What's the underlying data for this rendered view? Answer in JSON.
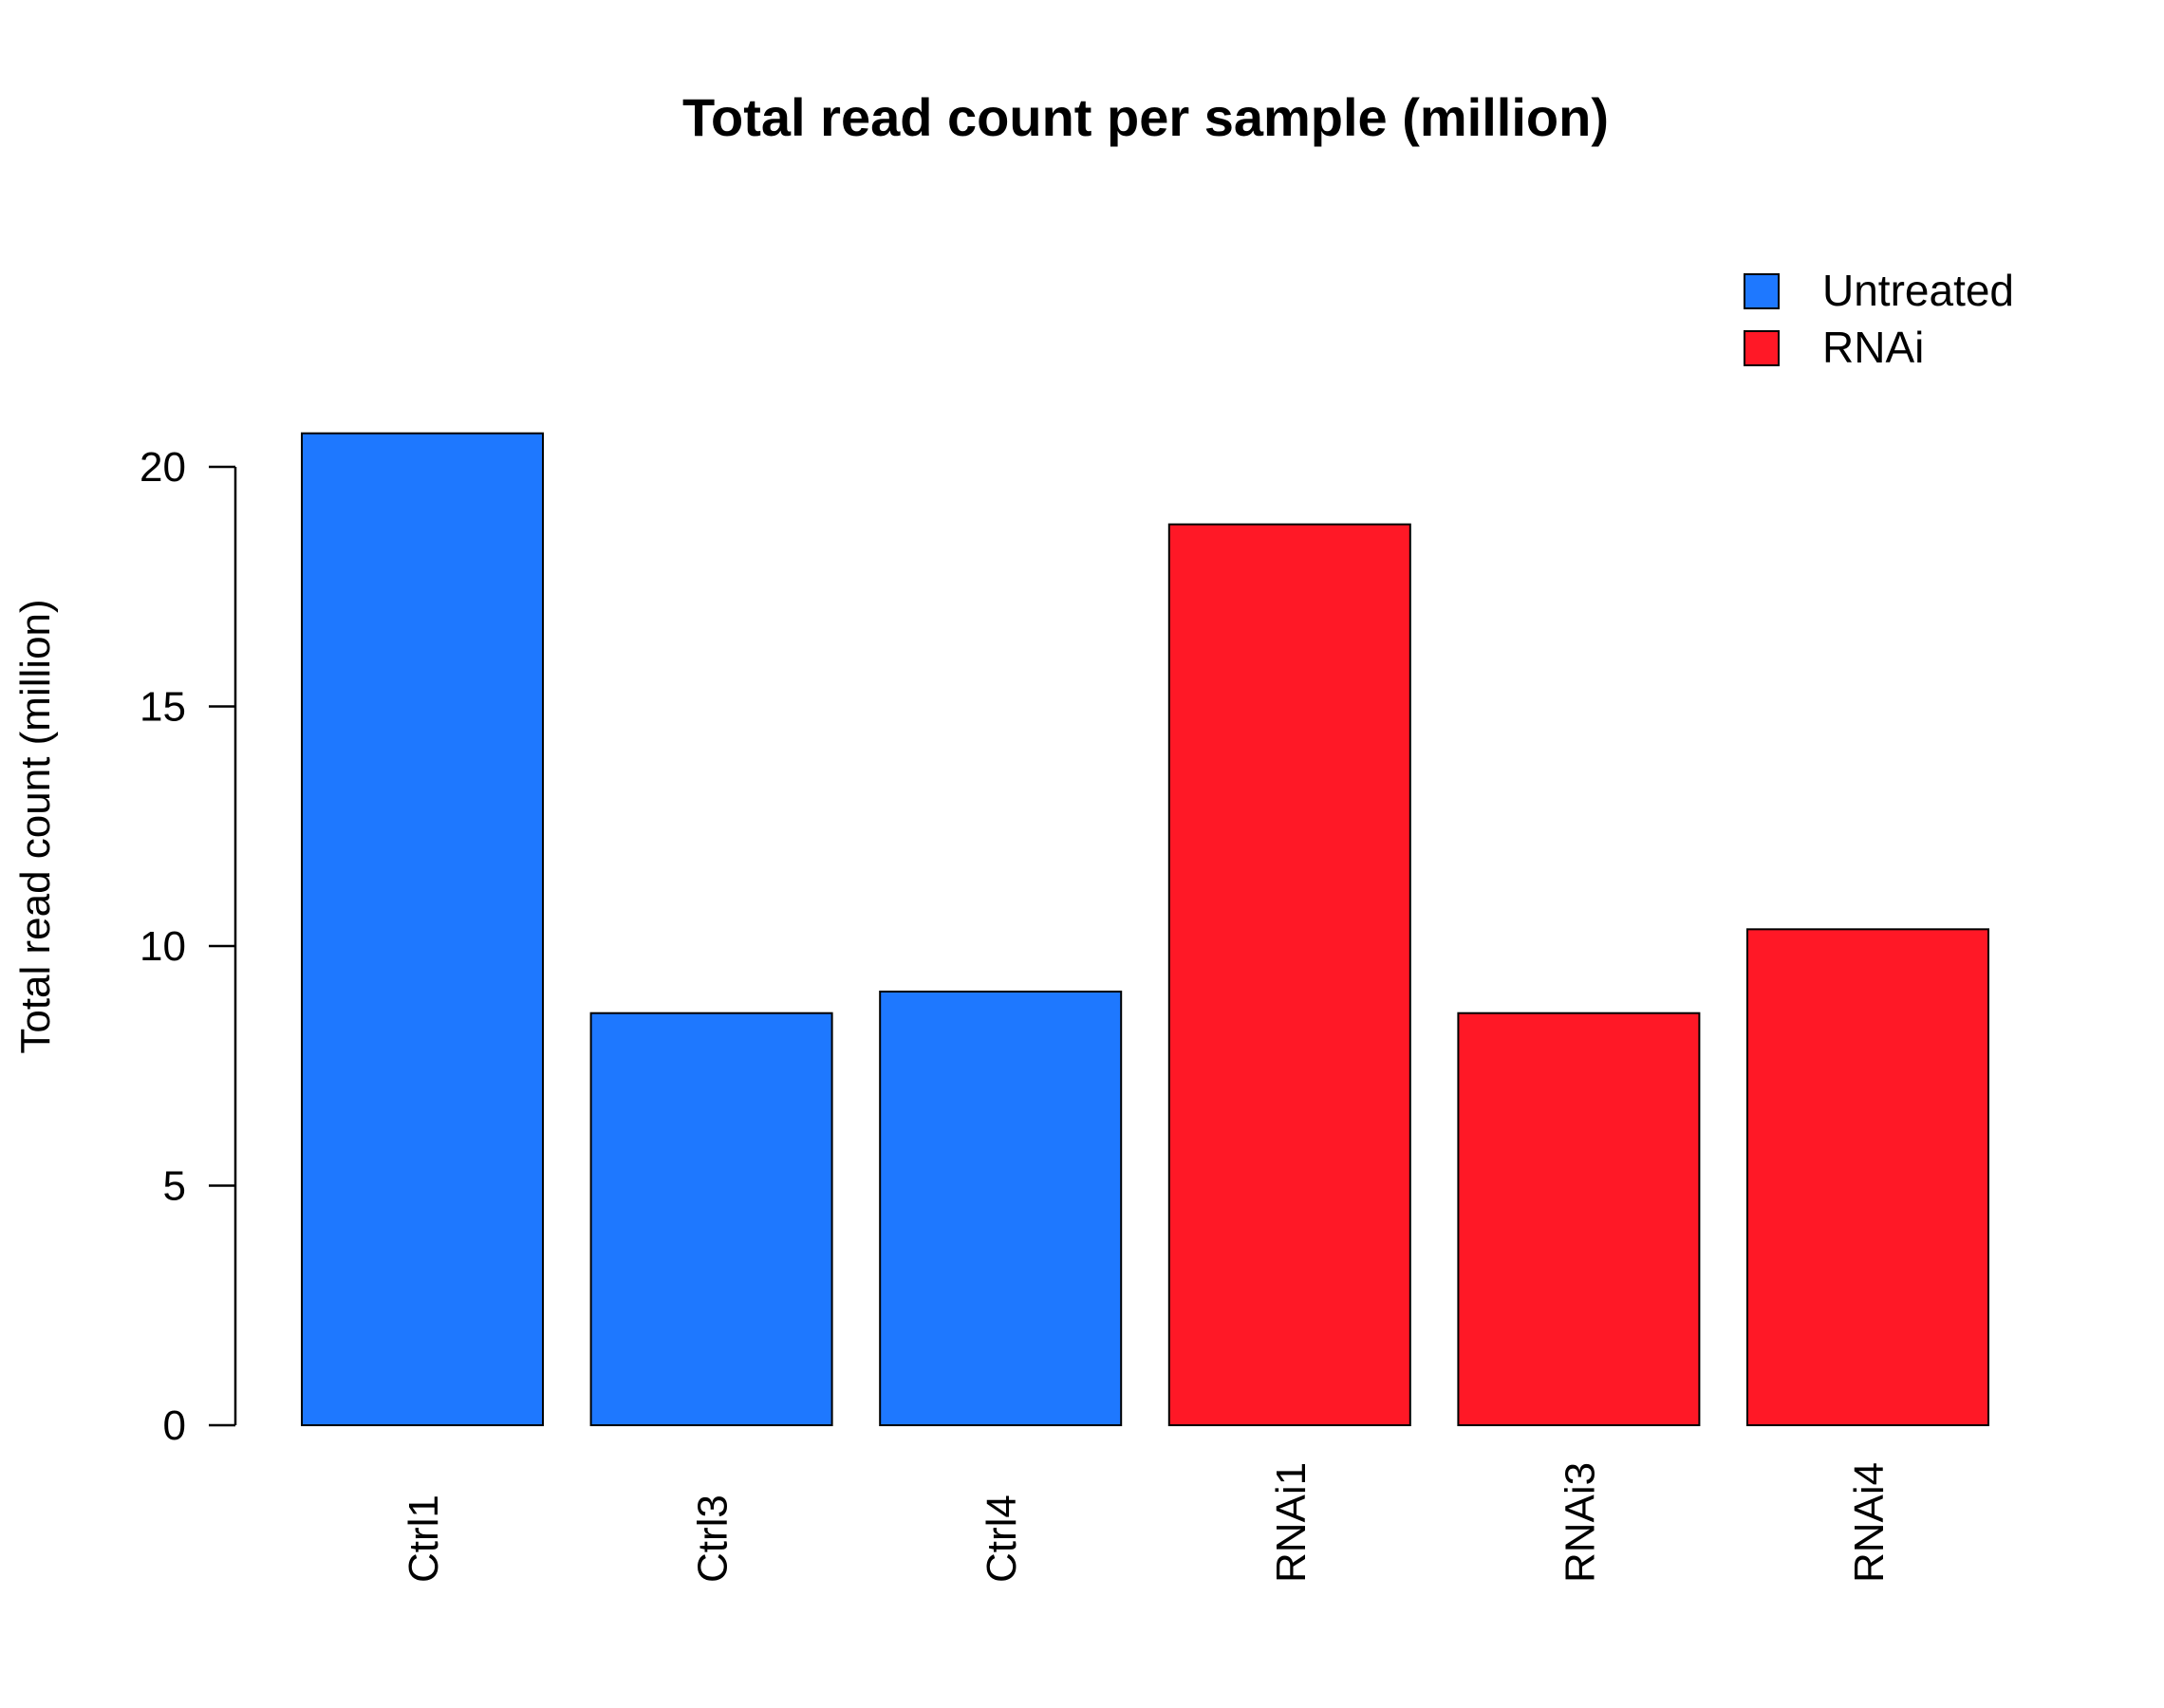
{
  "chart_data": {
    "type": "bar",
    "title": "Total read count per sample (million)",
    "xlabel": "",
    "ylabel": "Total read count (million)",
    "ylim": [
      0,
      22
    ],
    "yticks": [
      0,
      5,
      10,
      15,
      20
    ],
    "ytick_labels": [
      "0",
      "5",
      "10",
      "15",
      "20"
    ],
    "categories": [
      "Ctrl1",
      "Ctrl3",
      "Ctrl4",
      "RNAi1",
      "RNAi3",
      "RNAi4"
    ],
    "values": [
      20.7,
      8.6,
      9.05,
      18.8,
      8.6,
      10.35
    ],
    "bar_groups": [
      "Untreated",
      "Untreated",
      "Untreated",
      "RNAi",
      "RNAi",
      "RNAi"
    ],
    "legend": {
      "placement": "top-right",
      "entries": [
        {
          "label": "Untreated",
          "color": "#1E78FF"
        },
        {
          "label": "RNAi",
          "color": "#FF1826"
        }
      ]
    },
    "grid": false,
    "xtick_rotation": "vertical"
  }
}
